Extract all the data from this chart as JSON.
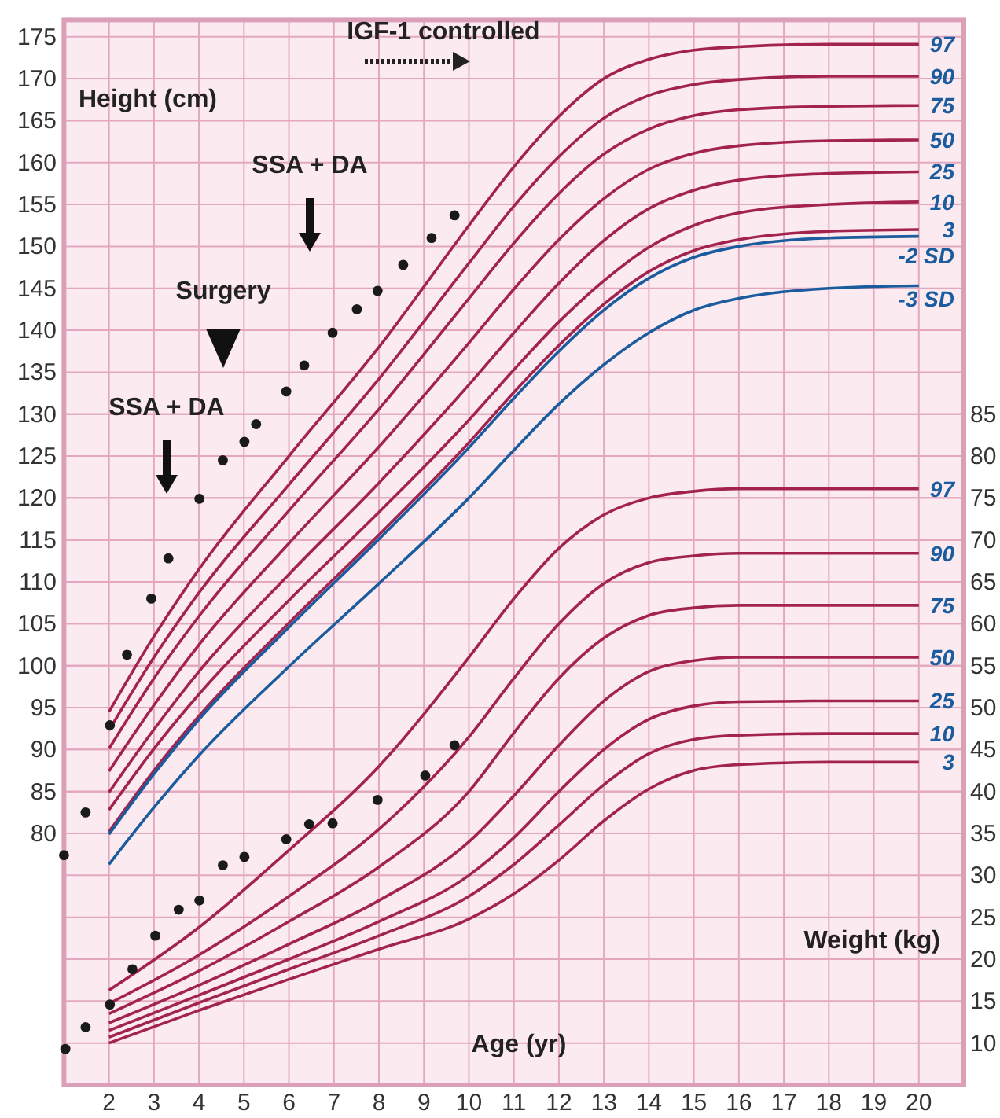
{
  "chart_data": {
    "type": "line",
    "xlabel": "Age (yr)",
    "ylabel": "Height (cm)",
    "y2label": "Weight (kg)",
    "xlim": [
      1,
      21
    ],
    "xticks": [
      2,
      3,
      4,
      5,
      6,
      7,
      8,
      9,
      10,
      11,
      12,
      13,
      14,
      15,
      16,
      17,
      18,
      19,
      20
    ],
    "ylim": [
      50,
      177
    ],
    "yticks": [
      80,
      85,
      90,
      95,
      100,
      105,
      110,
      115,
      120,
      125,
      130,
      135,
      140,
      145,
      150,
      155,
      160,
      165,
      170,
      175
    ],
    "y2lim": [
      5,
      132
    ],
    "y2ticks": [
      10,
      15,
      20,
      25,
      30,
      35,
      40,
      45,
      50,
      55,
      60,
      65,
      70,
      75,
      80,
      85
    ],
    "grid": true,
    "annotations": [
      "IGF-1 controlled",
      "SSA + DA",
      "Surgery",
      "SSA + DA"
    ],
    "series": [
      {
        "name": "97",
        "color": "#a3234f",
        "x": [
          2,
          3,
          4,
          6,
          8,
          10,
          11,
          12,
          13,
          14,
          15,
          16,
          18,
          20
        ],
        "values": [
          94.5,
          103.5,
          111.5,
          125.0,
          138.0,
          152.5,
          159.5,
          165.5,
          170.0,
          172.3,
          173.4,
          173.8,
          174.1,
          174.1
        ]
      },
      {
        "name": "90",
        "color": "#a3234f",
        "x": [
          2,
          3,
          4,
          6,
          8,
          10,
          11,
          12,
          13,
          14,
          15,
          16,
          18,
          20
        ],
        "values": [
          92.3,
          101.0,
          108.7,
          121.6,
          134.2,
          148.0,
          154.8,
          160.7,
          165.3,
          168.0,
          169.3,
          169.9,
          170.3,
          170.3
        ]
      },
      {
        "name": "75",
        "color": "#a3234f",
        "x": [
          2,
          3,
          4,
          6,
          8,
          10,
          11,
          12,
          13,
          14,
          15,
          16,
          18,
          20
        ],
        "values": [
          90.1,
          98.5,
          105.9,
          118.5,
          130.6,
          143.8,
          150.4,
          156.3,
          161.0,
          164.0,
          165.6,
          166.3,
          166.7,
          166.8
        ]
      },
      {
        "name": "50",
        "color": "#a3234f",
        "x": [
          2,
          3,
          4,
          6,
          8,
          10,
          11,
          12,
          13,
          14,
          15,
          16,
          18,
          20
        ],
        "values": [
          87.4,
          95.3,
          102.5,
          114.6,
          126.1,
          138.5,
          144.9,
          150.8,
          155.7,
          159.2,
          161.1,
          162.0,
          162.6,
          162.7
        ]
      },
      {
        "name": "25",
        "color": "#a3234f",
        "x": [
          2,
          3,
          4,
          6,
          8,
          10,
          11,
          12,
          13,
          14,
          15,
          16,
          18,
          20
        ],
        "values": [
          84.9,
          92.4,
          99.3,
          110.9,
          121.8,
          133.5,
          139.7,
          145.6,
          150.7,
          154.5,
          156.7,
          157.9,
          158.7,
          158.9
        ]
      },
      {
        "name": "10",
        "color": "#a3234f",
        "x": [
          2,
          3,
          4,
          6,
          8,
          10,
          11,
          12,
          13,
          14,
          15,
          16,
          18,
          20
        ],
        "values": [
          82.8,
          90.1,
          96.6,
          107.8,
          118.3,
          129.3,
          135.3,
          141.0,
          145.9,
          149.9,
          152.5,
          154.0,
          155.0,
          155.3
        ]
      },
      {
        "name": "3",
        "color": "#a3234f",
        "x": [
          2,
          3,
          4,
          6,
          8,
          10,
          11,
          12,
          13,
          14,
          15,
          16,
          18,
          20
        ],
        "values": [
          80.2,
          87.5,
          94.0,
          105.1,
          115.6,
          126.6,
          132.6,
          138.2,
          143.1,
          147.0,
          149.5,
          150.8,
          151.8,
          152.0
        ]
      },
      {
        "name": "-2 SD",
        "color": "#1b5c9e",
        "x": [
          2,
          3,
          4,
          6,
          8,
          10,
          11,
          12,
          13,
          14,
          15,
          16,
          18,
          20
        ],
        "values": [
          79.9,
          87.1,
          93.6,
          104.6,
          115.1,
          126.0,
          131.9,
          137.5,
          142.4,
          146.2,
          148.7,
          150.0,
          151.0,
          151.2
        ]
      },
      {
        "name": "-3 SD",
        "color": "#1b5c9e",
        "x": [
          2,
          3,
          4,
          6,
          8,
          10,
          11,
          12,
          13,
          14,
          15,
          16,
          18,
          20
        ],
        "values": [
          76.3,
          83.1,
          89.3,
          99.9,
          109.8,
          120.0,
          125.7,
          131.2,
          135.9,
          139.7,
          142.4,
          143.8,
          145.0,
          145.3
        ]
      },
      {
        "name": "97",
        "color": "#a3234f",
        "axis": "y2",
        "x": [
          2,
          4,
          6,
          8,
          10,
          11,
          12,
          13,
          14,
          15,
          16,
          18,
          20
        ],
        "values": [
          16.3,
          23.8,
          33.0,
          43.0,
          56.0,
          63.0,
          69.0,
          73.0,
          75.0,
          75.8,
          76.1,
          76.1,
          76.1
        ]
      },
      {
        "name": "90",
        "color": "#a3234f",
        "axis": "y2",
        "x": [
          2,
          4,
          6,
          8,
          10,
          11,
          12,
          13,
          14,
          15,
          16,
          18,
          20
        ],
        "values": [
          14.7,
          20.5,
          27.5,
          35.5,
          46.5,
          53.5,
          60.0,
          64.8,
          67.3,
          68.1,
          68.4,
          68.4,
          68.4
        ]
      },
      {
        "name": "75",
        "color": "#a3234f",
        "axis": "y2",
        "x": [
          2,
          4,
          6,
          8,
          10,
          11,
          12,
          13,
          14,
          15,
          16,
          18,
          20
        ],
        "values": [
          13.5,
          18.6,
          24.5,
          31.0,
          40.0,
          47.0,
          53.5,
          58.3,
          61.0,
          61.9,
          62.2,
          62.2,
          62.2
        ]
      },
      {
        "name": "50",
        "color": "#a3234f",
        "axis": "y2",
        "x": [
          2,
          4,
          6,
          8,
          10,
          11,
          12,
          13,
          14,
          15,
          16,
          18,
          20
        ],
        "values": [
          12.4,
          16.9,
          21.8,
          27.0,
          34.0,
          39.5,
          45.5,
          50.8,
          54.3,
          55.6,
          56.0,
          56.0,
          56.0
        ]
      },
      {
        "name": "25",
        "color": "#a3234f",
        "axis": "y2",
        "x": [
          2,
          4,
          6,
          8,
          10,
          11,
          12,
          13,
          14,
          15,
          16,
          18,
          20
        ],
        "values": [
          11.5,
          15.7,
          20.0,
          24.5,
          30.0,
          34.5,
          40.0,
          45.0,
          48.6,
          50.2,
          50.7,
          50.8,
          50.8
        ]
      },
      {
        "name": "10",
        "color": "#a3234f",
        "axis": "y2",
        "x": [
          2,
          4,
          6,
          8,
          10,
          11,
          12,
          13,
          14,
          15,
          16,
          18,
          20
        ],
        "values": [
          10.7,
          14.8,
          18.8,
          22.8,
          27.5,
          31.3,
          36.0,
          40.8,
          44.5,
          46.2,
          46.7,
          46.9,
          46.9
        ]
      },
      {
        "name": "3",
        "color": "#a3234f",
        "axis": "y2",
        "x": [
          2,
          4,
          6,
          8,
          10,
          11,
          12,
          13,
          14,
          15,
          16,
          18,
          20
        ],
        "values": [
          10.0,
          13.9,
          17.6,
          21.2,
          24.8,
          27.8,
          31.8,
          36.5,
          40.3,
          42.5,
          43.2,
          43.5,
          43.5
        ]
      },
      {
        "type": "scatter",
        "marker": "circle",
        "color": "#1a1a1a",
        "x": [
          1.0,
          1.48,
          2.02,
          2.4,
          2.94,
          3.32,
          4.01,
          4.53,
          5.01,
          5.27,
          5.94,
          6.34,
          6.97,
          7.51,
          7.97,
          8.54,
          9.17,
          9.68
        ],
        "values": [
          77.4,
          82.5,
          92.9,
          101.3,
          108.0,
          112.8,
          119.9,
          124.5,
          126.7,
          128.8,
          132.7,
          135.8,
          139.7,
          142.5,
          144.7,
          147.8,
          151.0,
          153.7
        ]
      },
      {
        "type": "scatter",
        "marker": "circle",
        "color": "#1a1a1a",
        "axis": "y2",
        "x": [
          1.03,
          1.48,
          2.02,
          2.52,
          3.03,
          3.55,
          4.01,
          4.53,
          5.01,
          5.94,
          6.45,
          6.97,
          7.97,
          9.03,
          9.68
        ],
        "values": [
          9.3,
          11.9,
          14.6,
          18.8,
          22.8,
          25.9,
          27.0,
          31.2,
          32.2,
          34.3,
          36.1,
          36.2,
          39.0,
          41.9,
          45.5
        ]
      }
    ]
  }
}
